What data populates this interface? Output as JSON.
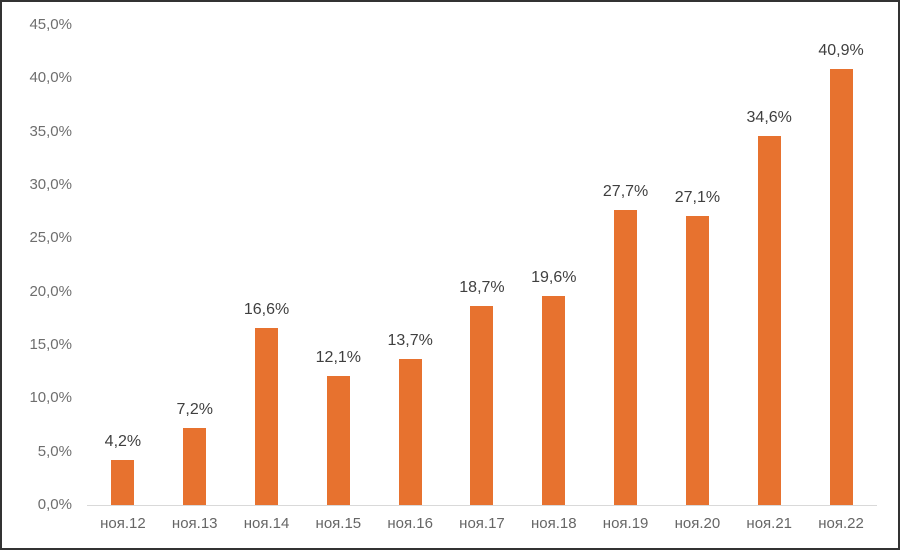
{
  "chart_data": {
    "type": "bar",
    "title": "",
    "xlabel": "",
    "ylabel": "",
    "categories": [
      "ноя.12",
      "ноя.13",
      "ноя.14",
      "ноя.15",
      "ноя.16",
      "ноя.17",
      "ноя.18",
      "ноя.19",
      "ноя.20",
      "ноя.21",
      "ноя.22"
    ],
    "values": [
      4.2,
      7.2,
      16.6,
      12.1,
      13.7,
      18.7,
      19.6,
      27.7,
      27.1,
      34.6,
      40.9
    ],
    "data_labels": [
      "4,2%",
      "7,2%",
      "16,6%",
      "12,1%",
      "13,7%",
      "18,7%",
      "19,6%",
      "27,7%",
      "27,1%",
      "34,6%",
      "40,9%"
    ],
    "yticks": [
      "45,0%",
      "40,0%",
      "35,0%",
      "30,0%",
      "25,0%",
      "20,0%",
      "15,0%",
      "10,0%",
      "5,0%",
      "0,0%"
    ],
    "ylim": [
      0,
      45
    ],
    "ytick_step": 5,
    "grid": false,
    "legend": "none",
    "colors": {
      "bar": "#e7722f",
      "axis_line": "#d9d9d9",
      "y_tick_label": "#6e6e6e",
      "x_tick_label": "#666666",
      "data_label": "#3f3f3f",
      "frame_border": "#333333",
      "background": "#ffffff"
    }
  }
}
